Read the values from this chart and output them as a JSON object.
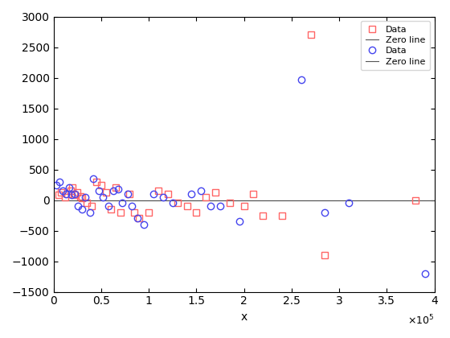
{
  "red_x": [
    5000,
    8000,
    12000,
    15000,
    18000,
    20000,
    22000,
    25000,
    28000,
    30000,
    35000,
    40000,
    45000,
    50000,
    55000,
    60000,
    65000,
    70000,
    80000,
    85000,
    90000,
    100000,
    110000,
    120000,
    130000,
    140000,
    150000,
    160000,
    170000,
    185000,
    200000,
    210000,
    220000,
    240000,
    270000,
    285000,
    380000
  ],
  "red_y": [
    80,
    120,
    50,
    100,
    150,
    200,
    80,
    130,
    60,
    30,
    -50,
    -100,
    300,
    250,
    120,
    -150,
    200,
    -200,
    100,
    -200,
    -300,
    -200,
    150,
    100,
    -50,
    -100,
    -200,
    50,
    120,
    -50,
    -100,
    100,
    -250,
    -250,
    2700,
    -900,
    0
  ],
  "blue_x": [
    3000,
    6000,
    10000,
    13000,
    16000,
    19000,
    22000,
    26000,
    30000,
    33000,
    38000,
    42000,
    48000,
    52000,
    58000,
    63000,
    68000,
    72000,
    78000,
    82000,
    88000,
    95000,
    105000,
    115000,
    125000,
    145000,
    155000,
    165000,
    175000,
    195000,
    260000,
    285000,
    310000,
    390000
  ],
  "blue_y": [
    250,
    300,
    150,
    100,
    200,
    80,
    100,
    -100,
    -150,
    50,
    -200,
    350,
    150,
    50,
    -100,
    150,
    180,
    -50,
    100,
    -100,
    -300,
    -400,
    100,
    50,
    -50,
    100,
    150,
    -100,
    -100,
    -350,
    1970,
    -200,
    -50,
    -1200
  ],
  "xlim": [
    0,
    400000
  ],
  "ylim": [
    -1500,
    3000
  ],
  "xlabel": "x",
  "ytick_values": [
    -1500,
    -1000,
    -500,
    0,
    500,
    1000,
    1500,
    2000,
    2500,
    3000
  ],
  "zero_line_color": "#555555",
  "red_color": "#FF6666",
  "red_marker": "s",
  "blue_color": "#4444EE",
  "blue_marker": "o",
  "marker_size": 6,
  "marker_facecolor": "none"
}
